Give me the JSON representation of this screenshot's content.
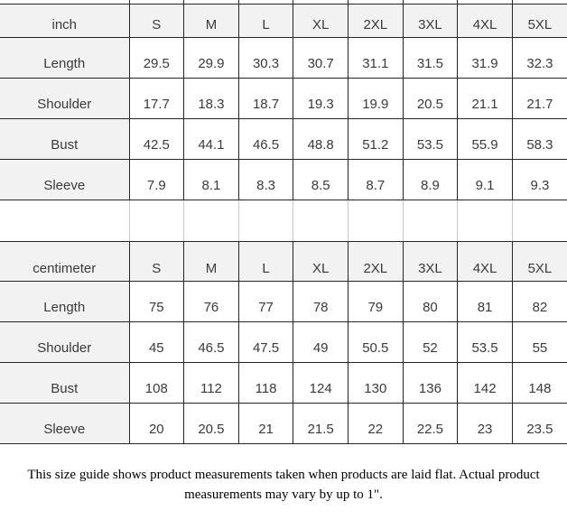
{
  "tables": [
    {
      "unit_label": "inch",
      "sizes": [
        "S",
        "M",
        "L",
        "XL",
        "2XL",
        "3XL",
        "4XL",
        "5XL"
      ],
      "rows": [
        {
          "label": "Length",
          "values": [
            "29.5",
            "29.9",
            "30.3",
            "30.7",
            "31.1",
            "31.5",
            "31.9",
            "32.3"
          ]
        },
        {
          "label": "Shoulder",
          "values": [
            "17.7",
            "18.3",
            "18.7",
            "19.3",
            "19.9",
            "20.5",
            "21.1",
            "21.7"
          ]
        },
        {
          "label": "Bust",
          "values": [
            "42.5",
            "44.1",
            "46.5",
            "48.8",
            "51.2",
            "53.5",
            "55.9",
            "58.3"
          ]
        },
        {
          "label": "Sleeve",
          "values": [
            "7.9",
            "8.1",
            "8.3",
            "8.5",
            "8.7",
            "8.9",
            "9.1",
            "9.3"
          ]
        }
      ]
    },
    {
      "unit_label": "centimeter",
      "sizes": [
        "S",
        "M",
        "L",
        "XL",
        "2XL",
        "3XL",
        "4XL",
        "5XL"
      ],
      "rows": [
        {
          "label": "Length",
          "values": [
            "75",
            "76",
            "77",
            "78",
            "79",
            "80",
            "81",
            "82"
          ]
        },
        {
          "label": "Shoulder",
          "values": [
            "45",
            "46.5",
            "47.5",
            "49",
            "50.5",
            "52",
            "53.5",
            "55"
          ]
        },
        {
          "label": "Bust",
          "values": [
            "108",
            "112",
            "118",
            "124",
            "130",
            "136",
            "142",
            "148"
          ]
        },
        {
          "label": "Sleeve",
          "values": [
            "20",
            "20.5",
            "21",
            "21.5",
            "22",
            "22.5",
            "23",
            "23.5"
          ]
        }
      ]
    }
  ],
  "footer": {
    "note": "This size guide shows product measurements taken when products are laid flat. Actual product measurements may vary by up to 1\"."
  },
  "colors": {
    "header_bg": "#f2f2f2",
    "label_bg": "#f2f2f2",
    "table_border": "#262626",
    "gap_line": "#c9c9c9",
    "text": "#3a3a3a"
  }
}
